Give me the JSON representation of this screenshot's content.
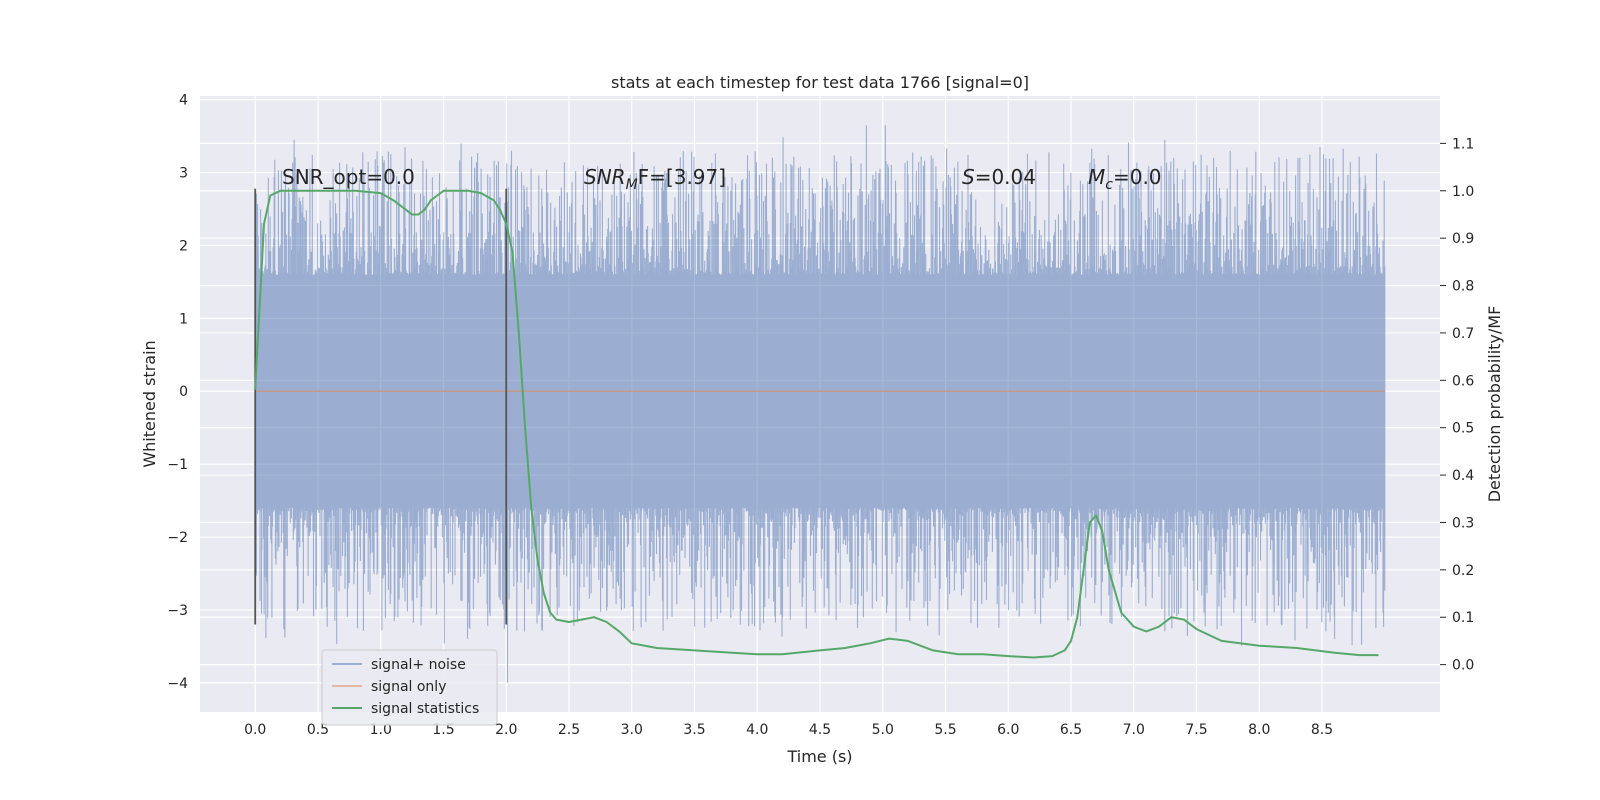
{
  "chart_data": {
    "type": "line",
    "title": "stats at each timestep for test data 1766 [signal=0]",
    "xlabel": "Time (s)",
    "ylabel_left": "Whitened strain",
    "ylabel_right": "Detection probability/MF",
    "xlim": [
      -0.44,
      9.44
    ],
    "ylim_left": [
      -4.4,
      4.05
    ],
    "ylim_right": [
      -0.1,
      1.2
    ],
    "x_ticks": [
      "0.0",
      "0.5",
      "1.0",
      "1.5",
      "2.0",
      "2.5",
      "3.0",
      "3.5",
      "4.0",
      "4.5",
      "5.0",
      "5.5",
      "6.0",
      "6.5",
      "7.0",
      "7.5",
      "8.0",
      "8.5"
    ],
    "y_ticks_left": [
      "4",
      "3",
      "2",
      "1",
      "0",
      "−1",
      "−2",
      "−3",
      "−4"
    ],
    "y_ticks_right": [
      "1.1",
      "1.0",
      "0.9",
      "0.8",
      "0.7",
      "0.6",
      "0.5",
      "0.4",
      "0.3",
      "0.2",
      "0.1",
      "0.0"
    ],
    "grid": true,
    "legend_position": "lower-left",
    "annotations": {
      "snr_opt": "SNR_opt=0.0",
      "snr_mf_sym": "SNR",
      "snr_mf_sub": "M",
      "snr_mf_rest": "F=[3.97]",
      "s_sym": "S",
      "s_rest": "=0.04",
      "mc_sym": "M",
      "mc_sub": "c",
      "mc_rest": "=0.0"
    },
    "window_markers_x": [
      0.0,
      2.0
    ],
    "series": [
      {
        "name": "signal+ noise",
        "color": "#4c72b0",
        "x_range": [
          0.0,
          9.0
        ],
        "envelope_typical": [
          -1.6,
          1.6
        ],
        "extreme_peaks": [
          {
            "x": 0.31,
            "y": 3.45
          },
          {
            "x": 1.64,
            "y": 3.4
          },
          {
            "x": 4.87,
            "y": 3.65
          },
          {
            "x": 5.02,
            "y": 3.65
          },
          {
            "x": 8.6,
            "y": -3.4
          },
          {
            "x": 5.45,
            "y": -3.35
          },
          {
            "x": 2.01,
            "y": -4.0
          },
          {
            "x": 0.05,
            "y": -3.05
          }
        ]
      },
      {
        "name": "signal only",
        "color": "#dd8452",
        "x": [
          0.0,
          9.0
        ],
        "y": [
          0.0,
          0.0
        ]
      },
      {
        "name": "signal statistics",
        "color": "#55a868",
        "axis": "right",
        "x": [
          0.0,
          0.07,
          0.12,
          0.2,
          0.3,
          0.4,
          0.6,
          0.8,
          1.0,
          1.1,
          1.2,
          1.25,
          1.3,
          1.35,
          1.4,
          1.45,
          1.5,
          1.6,
          1.7,
          1.8,
          1.9,
          1.95,
          2.0,
          2.05,
          2.1,
          2.15,
          2.2,
          2.25,
          2.3,
          2.35,
          2.4,
          2.5,
          2.6,
          2.7,
          2.8,
          2.9,
          3.0,
          3.2,
          3.5,
          3.8,
          4.0,
          4.2,
          4.5,
          4.7,
          4.9,
          5.05,
          5.2,
          5.4,
          5.6,
          5.8,
          6.0,
          6.2,
          6.35,
          6.45,
          6.5,
          6.55,
          6.6,
          6.65,
          6.7,
          6.75,
          6.8,
          6.9,
          7.0,
          7.1,
          7.2,
          7.3,
          7.4,
          7.5,
          7.7,
          8.0,
          8.3,
          8.6,
          8.8,
          8.95
        ],
        "y": [
          0.58,
          0.93,
          0.99,
          1.0,
          1.0,
          1.0,
          1.0,
          1.0,
          0.995,
          0.98,
          0.96,
          0.95,
          0.95,
          0.96,
          0.98,
          0.99,
          1.0,
          1.0,
          1.0,
          0.995,
          0.98,
          0.96,
          0.93,
          0.87,
          0.7,
          0.5,
          0.33,
          0.22,
          0.15,
          0.11,
          0.095,
          0.09,
          0.095,
          0.1,
          0.09,
          0.07,
          0.045,
          0.035,
          0.03,
          0.025,
          0.022,
          0.022,
          0.03,
          0.035,
          0.045,
          0.055,
          0.05,
          0.03,
          0.022,
          0.022,
          0.018,
          0.015,
          0.018,
          0.03,
          0.05,
          0.1,
          0.2,
          0.3,
          0.315,
          0.28,
          0.2,
          0.11,
          0.08,
          0.07,
          0.08,
          0.1,
          0.095,
          0.075,
          0.05,
          0.04,
          0.035,
          0.025,
          0.02,
          0.02
        ]
      }
    ]
  }
}
